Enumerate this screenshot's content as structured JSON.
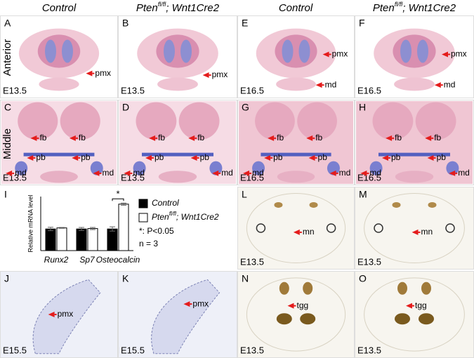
{
  "headers": {
    "control": "Control",
    "mutant": {
      "gene": "Pten",
      "superscript": "fl/fl",
      "suffix": "; Wnt1Cre2"
    }
  },
  "row_labels": [
    "Anterior",
    "Middle"
  ],
  "panels": [
    {
      "letter": "A",
      "stage": "E13.5",
      "annotations": [
        "pmx"
      ]
    },
    {
      "letter": "B",
      "stage": "E13.5",
      "annotations": [
        "pmx"
      ]
    },
    {
      "letter": "C",
      "stage": "E13.5",
      "annotations": [
        "fb",
        "fb",
        "pb",
        "pb",
        "md",
        "md"
      ]
    },
    {
      "letter": "D",
      "stage": "E13.5",
      "annotations": [
        "fb",
        "fb",
        "pb",
        "pb",
        "md",
        "md"
      ]
    },
    {
      "letter": "E",
      "stage": "E16.5",
      "annotations": [
        "pmx",
        "md"
      ]
    },
    {
      "letter": "F",
      "stage": "E16.5",
      "annotations": [
        "pmx",
        "md"
      ]
    },
    {
      "letter": "G",
      "stage": "E16.5",
      "annotations": [
        "fb",
        "fb",
        "pb",
        "pb",
        "md",
        "md"
      ]
    },
    {
      "letter": "H",
      "stage": "E16.5",
      "annotations": [
        "fb",
        "fb",
        "pb",
        "pb",
        "md",
        "md"
      ]
    },
    {
      "letter": "J",
      "stage": "E15.5",
      "annotations": [
        "pmx"
      ]
    },
    {
      "letter": "K",
      "stage": "E15.5",
      "annotations": [
        "pmx"
      ]
    },
    {
      "letter": "L",
      "stage": "E13.5",
      "annotations": [
        "mn"
      ]
    },
    {
      "letter": "M",
      "stage": "E13.5",
      "annotations": [
        "mn"
      ]
    },
    {
      "letter": "N",
      "stage": "E13.5",
      "annotations": [
        "tgg"
      ]
    },
    {
      "letter": "O",
      "stage": "E13.5",
      "annotations": [
        "tgg"
      ]
    }
  ],
  "chart_letter": "I",
  "chart_data": {
    "type": "bar",
    "y_label": "Relative mRNA level",
    "categories": [
      "Runx2",
      "Sp7",
      "Osteocalcin"
    ],
    "series": [
      {
        "name": "Control",
        "color": "#000000",
        "values": [
          1.0,
          1.0,
          1.0
        ],
        "errors": [
          0.08,
          0.07,
          0.1
        ]
      },
      {
        "name": "Pten",
        "name_superscript": "fl/fl",
        "name_suffix": "; Wnt1Cre2",
        "color": "#ffffff",
        "values": [
          1.05,
          1.02,
          2.15
        ],
        "errors": [
          0.02,
          0.05,
          0.05
        ]
      }
    ],
    "ylim": [
      0,
      2.5
    ],
    "significance": "*",
    "notes": [
      "*: P<0.05",
      "n = 3"
    ]
  }
}
